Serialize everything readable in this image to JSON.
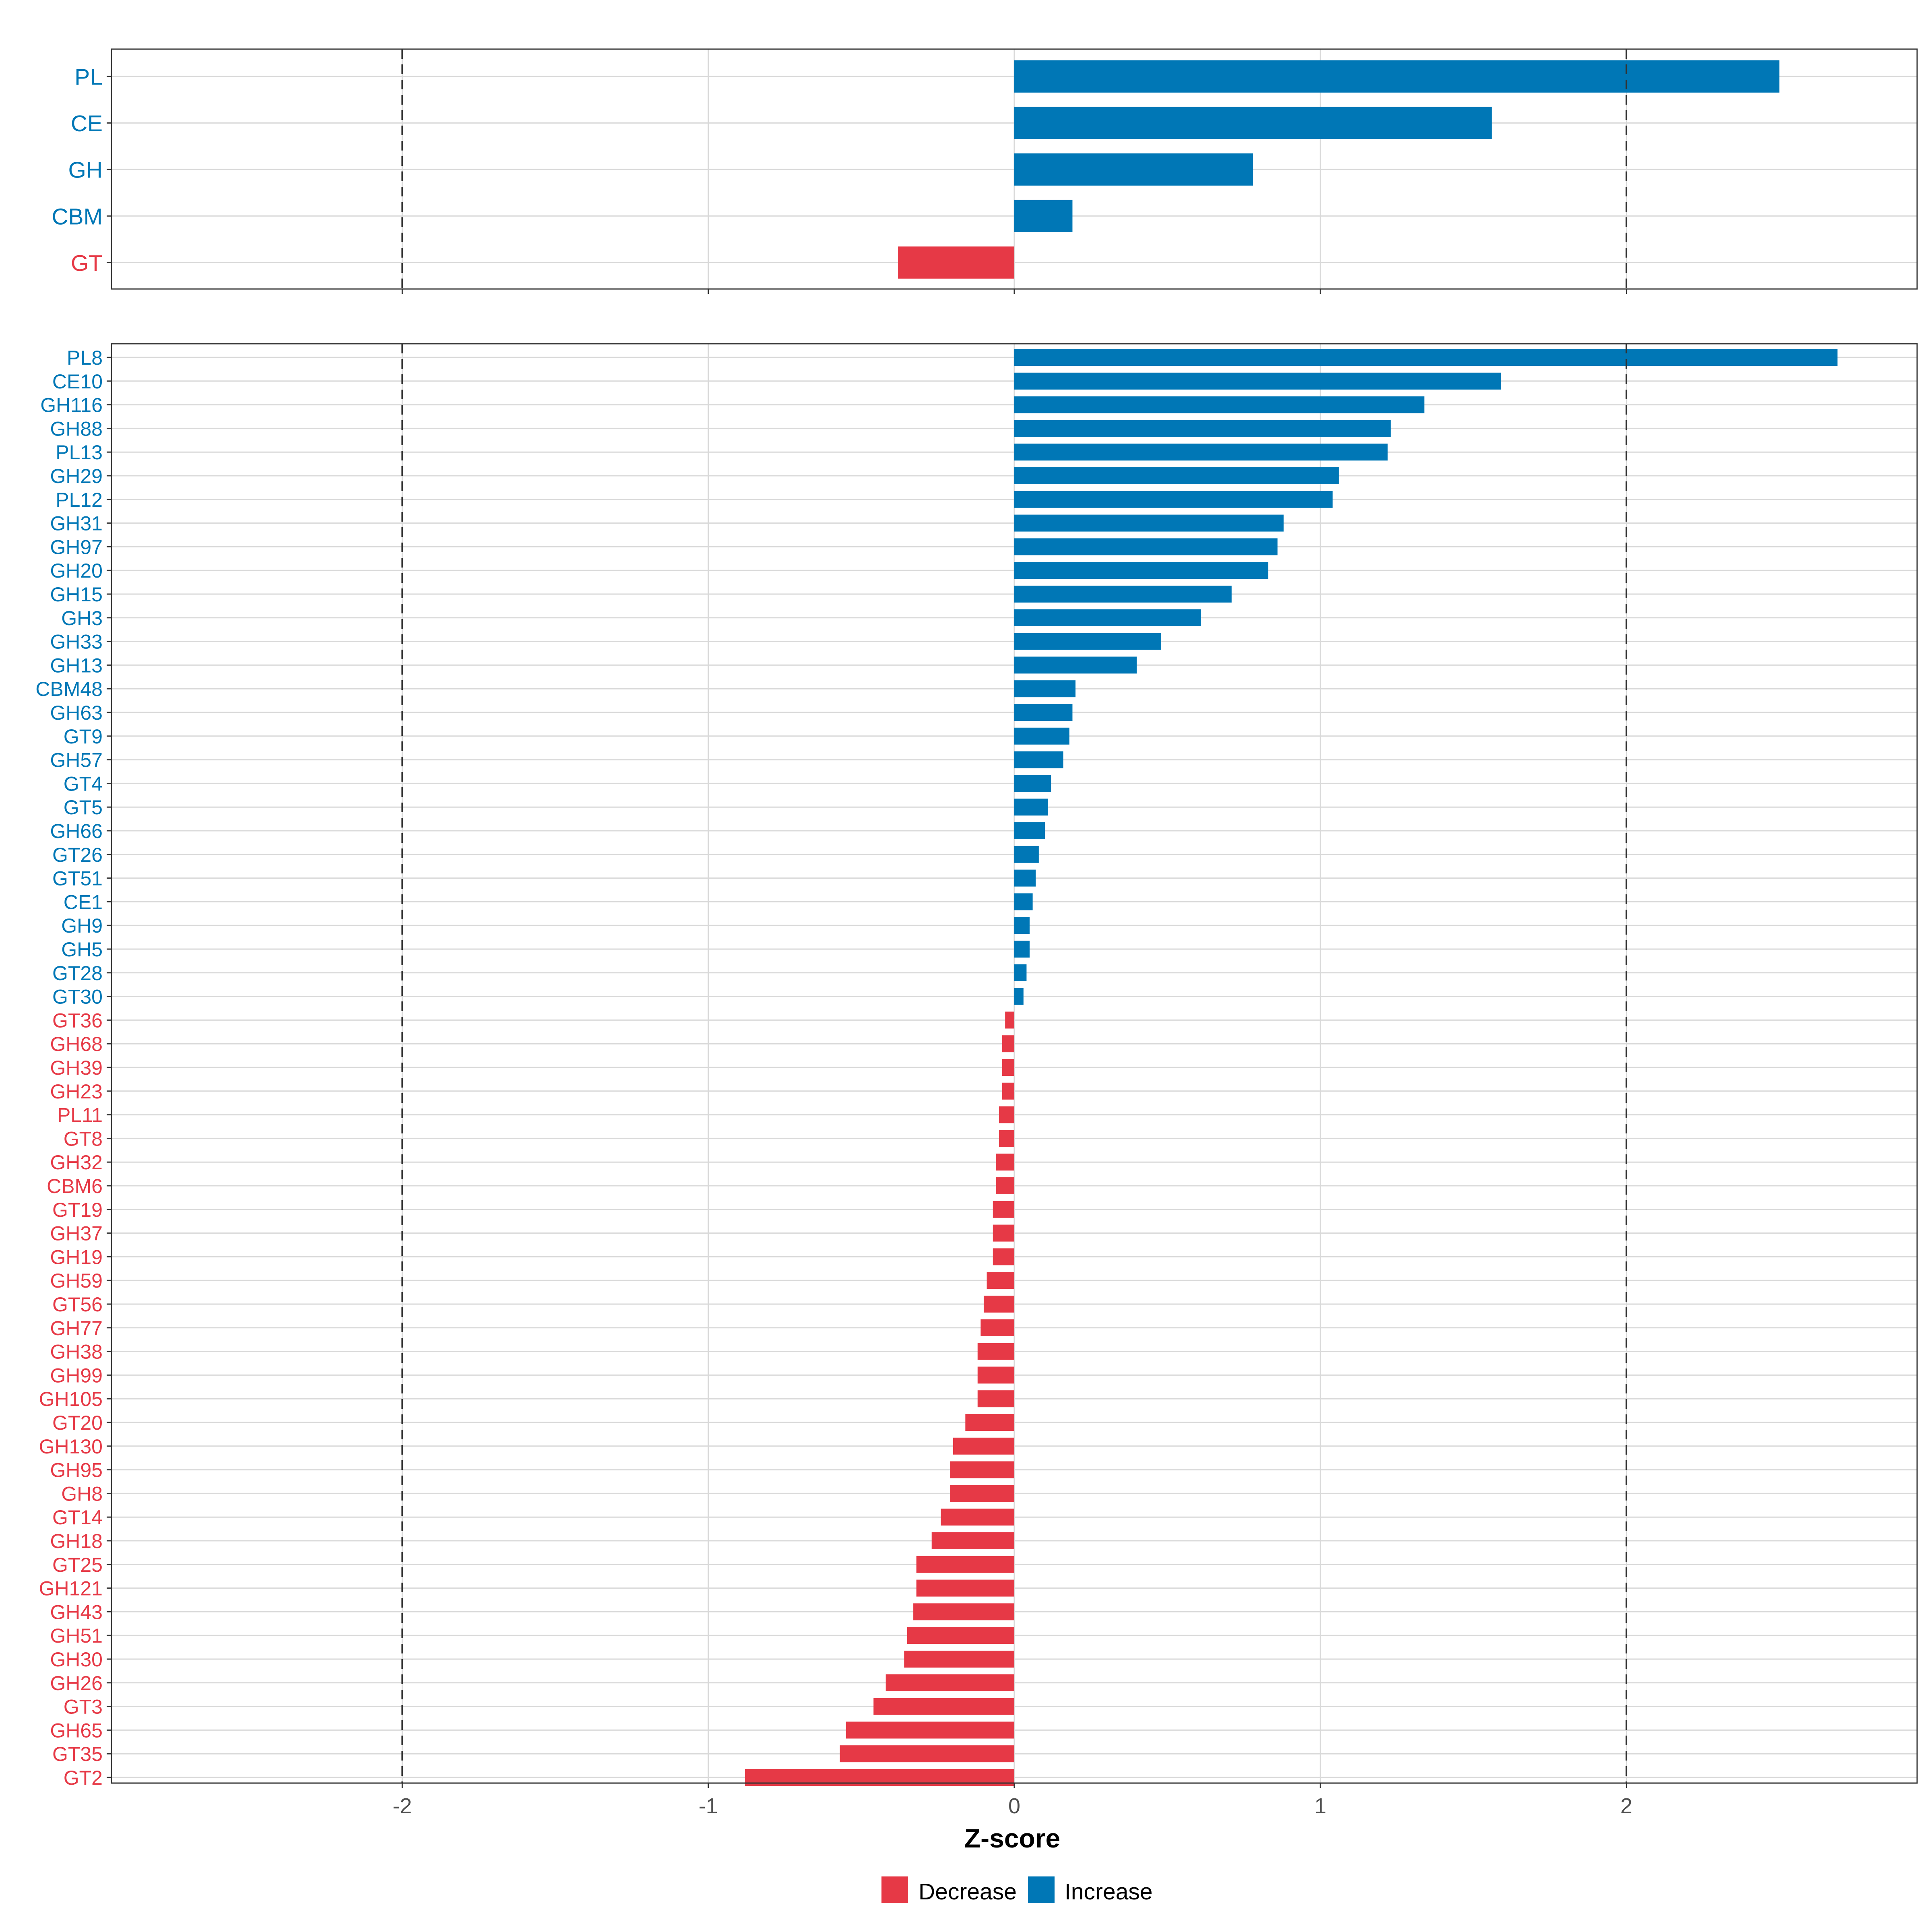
{
  "colors": {
    "decrease": "#E63946",
    "increase": "#0077B6",
    "grid": "#D9D9D9",
    "axis_text": "#4D4D4D",
    "border": "#333333"
  },
  "chart_data": [
    {
      "type": "bar",
      "orientation": "horizontal",
      "panel": "top",
      "xlim": [
        -2.95,
        2.95
      ],
      "xticks": [
        -2,
        -1,
        0,
        1,
        2
      ],
      "reference_lines": [
        -2,
        2
      ],
      "categories": [
        "PL",
        "CE",
        "GH",
        "CBM",
        "GT"
      ],
      "values": [
        2.5,
        1.56,
        0.78,
        0.19,
        -0.38
      ]
    },
    {
      "type": "bar",
      "orientation": "horizontal",
      "panel": "bottom",
      "xlim": [
        -2.95,
        2.95
      ],
      "xticks": [
        -2,
        -1,
        0,
        1,
        2
      ],
      "reference_lines": [
        -2,
        2
      ],
      "categories": [
        "PL8",
        "CE10",
        "GH116",
        "GH88",
        "PL13",
        "GH29",
        "PL12",
        "GH31",
        "GH97",
        "GH20",
        "GH15",
        "GH3",
        "GH33",
        "GH13",
        "CBM48",
        "GH63",
        "GT9",
        "GH57",
        "GT4",
        "GT5",
        "GH66",
        "GT26",
        "GT51",
        "CE1",
        "GH9",
        "GH5",
        "GT28",
        "GT30",
        "GT36",
        "GH68",
        "GH39",
        "GH23",
        "PL11",
        "GT8",
        "GH32",
        "CBM6",
        "GT19",
        "GH37",
        "GH19",
        "GH59",
        "GT56",
        "GH77",
        "GH38",
        "GH99",
        "GH105",
        "GT20",
        "GH130",
        "GH95",
        "GH8",
        "GT14",
        "GH18",
        "GT25",
        "GH121",
        "GH43",
        "GH51",
        "GH30",
        "GH26",
        "GT3",
        "GH65",
        "GT35",
        "GT2"
      ],
      "values": [
        2.69,
        1.59,
        1.34,
        1.23,
        1.22,
        1.06,
        1.04,
        0.88,
        0.86,
        0.83,
        0.71,
        0.61,
        0.48,
        0.4,
        0.2,
        0.19,
        0.18,
        0.16,
        0.12,
        0.11,
        0.1,
        0.08,
        0.07,
        0.06,
        0.05,
        0.05,
        0.04,
        0.03,
        -0.03,
        -0.04,
        -0.04,
        -0.04,
        -0.05,
        -0.05,
        -0.06,
        -0.06,
        -0.07,
        -0.07,
        -0.07,
        -0.09,
        -0.1,
        -0.11,
        -0.12,
        -0.12,
        -0.12,
        -0.16,
        -0.2,
        -0.21,
        -0.21,
        -0.24,
        -0.27,
        -0.32,
        -0.32,
        -0.33,
        -0.35,
        -0.36,
        -0.42,
        -0.46,
        -0.55,
        -0.57,
        -0.88
      ]
    }
  ],
  "xlabel": "Z-score",
  "legend": {
    "position": "bottom",
    "items": [
      {
        "label": "Decrease",
        "color": "#E63946"
      },
      {
        "label": "Increase",
        "color": "#0077B6"
      }
    ]
  }
}
